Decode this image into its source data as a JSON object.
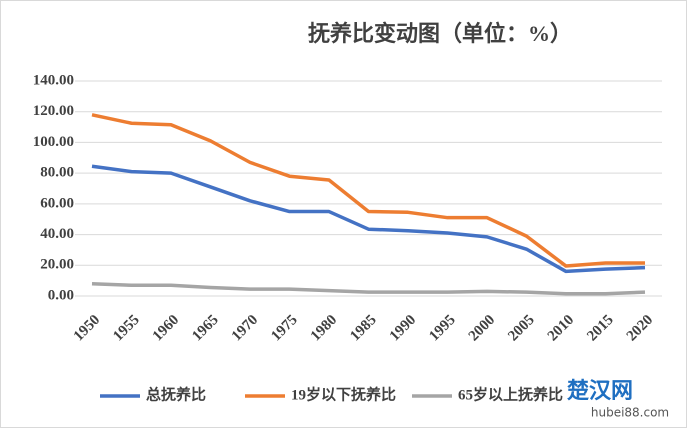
{
  "chart_data": {
    "type": "line",
    "title": "抚养比变动图（单位：%）",
    "categories": [
      "1950",
      "1955",
      "1960",
      "1965",
      "1970",
      "1975",
      "1980",
      "1985",
      "1990",
      "1995",
      "2000",
      "2005",
      "2010",
      "2015",
      "2020"
    ],
    "series": [
      {
        "name": "总抚养比",
        "color": "#4472c4",
        "values": [
          84.5,
          81,
          80,
          71,
          62,
          55,
          55,
          43.5,
          42.5,
          41,
          38.5,
          30.5,
          16,
          17.5,
          18.5
        ]
      },
      {
        "name": "19岁以下抚养比",
        "color": "#ed7d31",
        "values": [
          118,
          112.5,
          111.5,
          101,
          87,
          78,
          75.5,
          55,
          54.5,
          51,
          51,
          39,
          19.5,
          21.5,
          21.5
        ]
      },
      {
        "name": "65岁以上抚养比",
        "color": "#a5a5a5",
        "values": [
          8,
          7,
          7,
          5.5,
          4.5,
          4.5,
          3.5,
          2.5,
          2.5,
          2.5,
          3,
          2.5,
          1.5,
          1.5,
          2.5
        ]
      }
    ],
    "ylim": [
      0,
      140
    ],
    "yticks": [
      {
        "value": 0,
        "label": "0.00"
      },
      {
        "value": 20,
        "label": "20.00"
      },
      {
        "value": 40,
        "label": "40.00"
      },
      {
        "value": 60,
        "label": "60.00"
      },
      {
        "value": 80,
        "label": "80.00"
      },
      {
        "value": 100,
        "label": "100.00"
      },
      {
        "value": 120,
        "label": "120.00"
      },
      {
        "value": 140,
        "label": "140.00"
      }
    ],
    "grid": true
  },
  "watermark": {
    "name": "楚汉网",
    "url": "hubei88.com"
  }
}
